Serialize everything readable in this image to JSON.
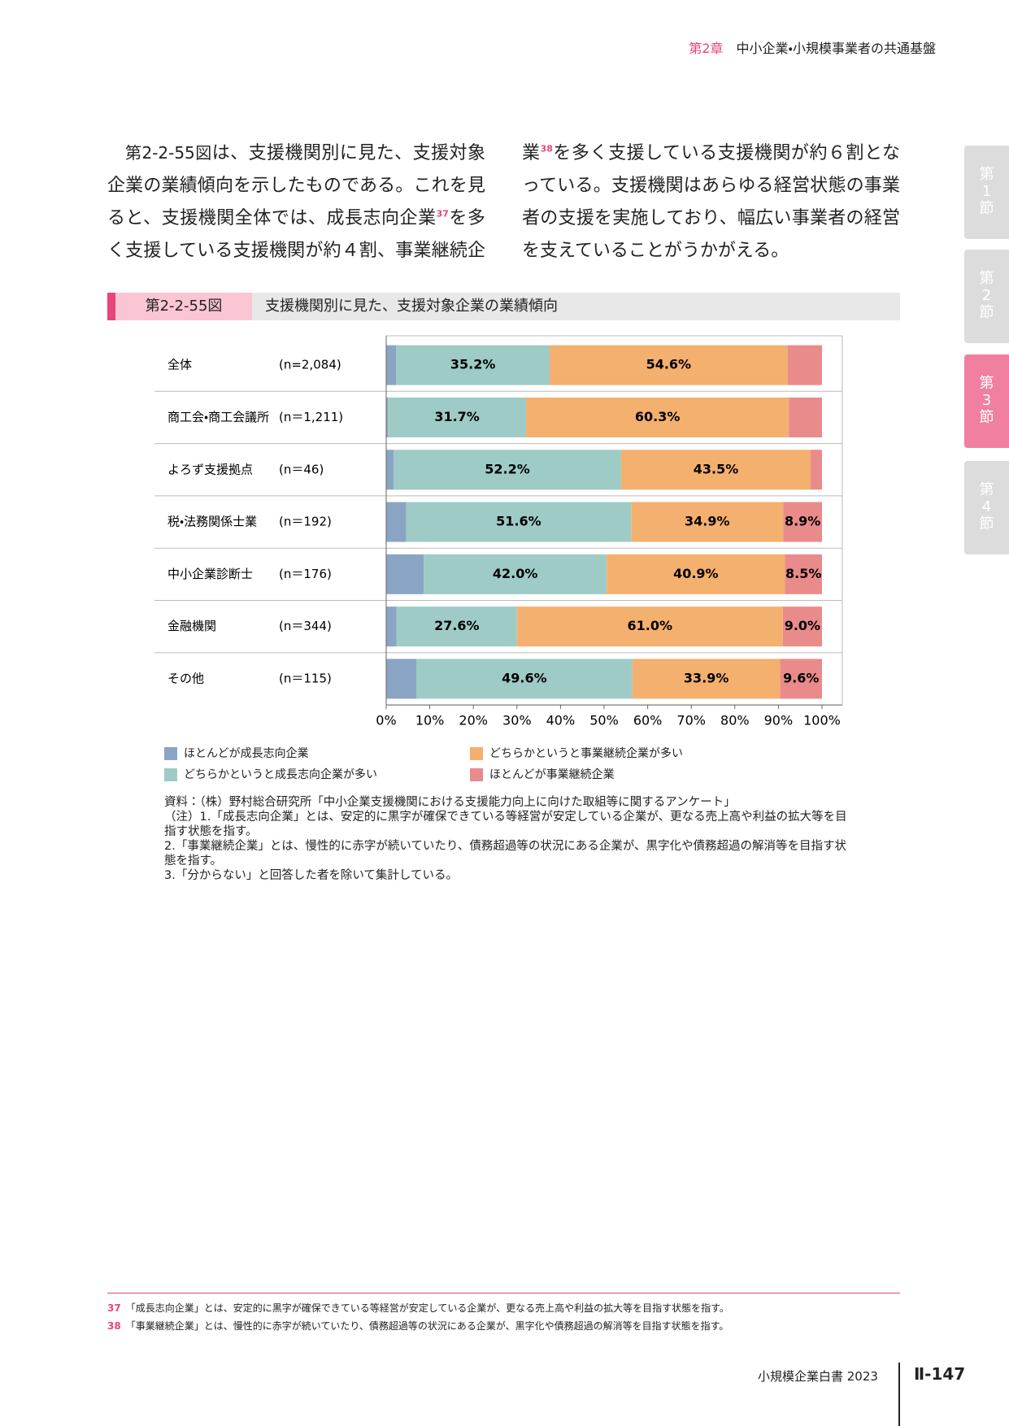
{
  "header": {
    "chapter": "第2章",
    "title": "中小企業・小規模事業者の共通基盤"
  },
  "side_tabs": [
    "第1節",
    "第2節",
    "第3節",
    "第4節"
  ],
  "body": [
    {
      "figure_ref": "第2-2-55図"
    },
    {
      "text": "は、支援機関別に見た、支援対象企業の業績傾向を示したものである。これを見ると、支援機関全体では、成長志向企業"
    },
    {
      "note_ref": "37"
    },
    {
      "text": "を多く支援している支援機関が約４割、事業継続企業"
    },
    {
      "note_ref": "38"
    },
    {
      "text": "を多く支援している支援機関が約６割となっている。支援機関はあらゆる経営状態の事業者の支援を実施しており、幅広い事業者の経営を支えていることがうかがえる。"
    }
  ],
  "figure": {
    "label": "第2-2-55図",
    "title": "支援機関別に見た、支援対象企業の業績傾向"
  },
  "chart_data": {
    "type": "stacked_barh",
    "categories": [
      "全体",
      "商工会・商工会議所",
      "よろず支援拠点",
      "税・法務関係士業",
      "中小企業診断士",
      "金融機関",
      "その他"
    ],
    "sample_sizes": [
      "(n=2,084)",
      "(n＝1,211)",
      "(n＝46)",
      "(n＝192)",
      "(n＝176)",
      "(n＝344)",
      "(n＝115)"
    ],
    "xlim": [
      0,
      100
    ],
    "xticks": [
      {
        "value": 0,
        "label": "0%"
      },
      {
        "value": 10,
        "label": "10%"
      },
      {
        "value": 20,
        "label": "20%"
      },
      {
        "value": 30,
        "label": "30%"
      },
      {
        "value": 40,
        "label": "40%"
      },
      {
        "value": 50,
        "label": "50%"
      },
      {
        "value": 60,
        "label": "60%"
      },
      {
        "value": 70,
        "label": "70%"
      },
      {
        "value": 80,
        "label": "80%"
      },
      {
        "value": 90,
        "label": "90%"
      },
      {
        "value": 100,
        "label": "100%"
      }
    ],
    "series": [
      {
        "name": "ほとんどが成長志向企業",
        "color": "#8aa5c4",
        "values": [
          2.3,
          0.4,
          1.7,
          4.6,
          8.6,
          2.4,
          6.9
        ]
      },
      {
        "name": "どちらかというと成長志向企業が多い",
        "color": "#9ecbc6",
        "values": [
          35.2,
          31.7,
          52.2,
          51.6,
          42.0,
          27.6,
          49.6
        ],
        "value_labels": [
          "35.2%",
          "31.7%",
          "52.2%",
          "51.6%",
          "42.0%",
          "27.6%",
          "49.6%"
        ]
      },
      {
        "name": "どちらかというと事業継続企業が多い",
        "color": "#f4b06e",
        "values": [
          54.6,
          60.3,
          43.5,
          34.9,
          40.9,
          61.0,
          33.9
        ],
        "value_labels": [
          "54.6%",
          "60.3%",
          "43.5%",
          "34.9%",
          "40.9%",
          "61.0%",
          "33.9%"
        ]
      },
      {
        "name": "ほとんどが事業継続企業",
        "color": "#e98b8b",
        "values": [
          7.9,
          7.6,
          2.6,
          8.9,
          8.5,
          9.0,
          9.6
        ],
        "value_labels": [
          null,
          null,
          null,
          "8.9%",
          "8.5%",
          "9.0%",
          "9.6%"
        ]
      }
    ]
  },
  "notes": [
    "資料：（株）野村総合研究所「中小企業支援機関における支援能力向上に向けた取組等に関するアンケート」",
    "（注）1.「成長志向企業」とは、安定的に黒字が確保できている等経営が安定している企業が、更なる売上高や利益の拡大等を目指す状態を指す。",
    "2.「事業継続企業」とは、慢性的に赤字が続いていたり、債務超過等の状況にある企業が、黒字化や債務超過の解消等を目指す状態を指す。",
    "3.「分からない」と回答した者を除いて集計している。"
  ],
  "footnotes": [
    {
      "number": "37",
      "text": "「成長志向企業」とは、安定的に黒字が確保できている等経営が安定している企業が、更なる売上高や利益の拡大等を目指す状態を指す。"
    },
    {
      "number": "38",
      "text": "「事業継続企業」とは、慢性的に赤字が続いていたり、債務超過等の状況にある企業が、黒字化や債務超過の解消等を目指す状態を指す。"
    }
  ],
  "footer": {
    "publication": "小規模企業白書 2023",
    "page": "Ⅱ-147"
  }
}
